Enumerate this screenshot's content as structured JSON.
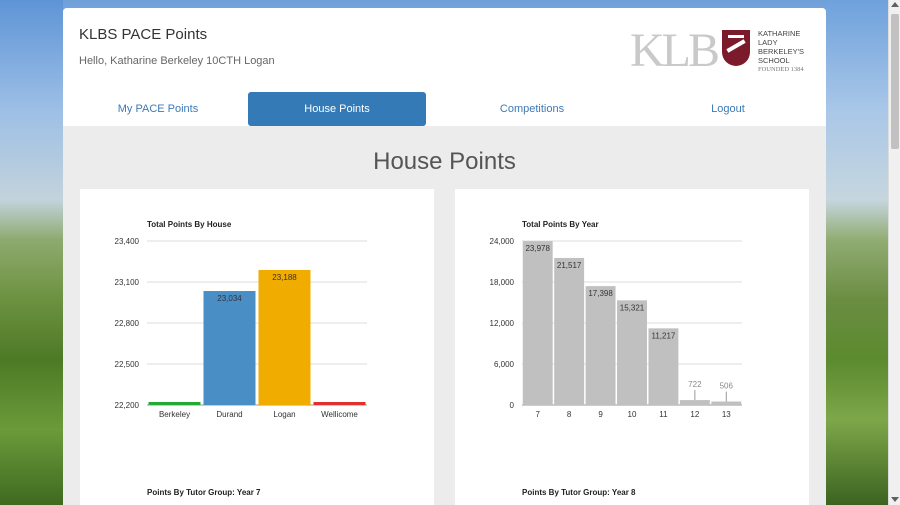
{
  "header": {
    "app_title": "KLBS PACE Points",
    "greeting": "Hello, Katharine Berkeley  10CTH  Logan",
    "logo": {
      "letters": "KLB",
      "name_lines": [
        "KATHARINE",
        "LADY",
        "BERKELEY'S",
        "SCHOOL"
      ],
      "founded": "FOUNDED 1384",
      "brand_color": "#7a1a2a"
    }
  },
  "nav": {
    "items": [
      {
        "label": "My PACE Points"
      },
      {
        "label": "House Points",
        "active": true
      },
      {
        "label": "Competitions"
      },
      {
        "label": "Logout"
      }
    ]
  },
  "main": {
    "title": "House Points",
    "subcharts": [
      "Points By Tutor Group: Year 7",
      "Points By Tutor Group: Year 8"
    ]
  },
  "chart_data": [
    {
      "type": "bar",
      "title": "Total Points By House",
      "categories": [
        "Berkeley",
        "Durand",
        "Logan",
        "Wellicome"
      ],
      "values": [
        22200,
        23034,
        23188,
        22200
      ],
      "labels": [
        "",
        "23,034",
        "23,188",
        ""
      ],
      "colors": [
        "#22aa33",
        "#4a8ec6",
        "#f0ad00",
        "#e03030"
      ],
      "ylim": [
        22200,
        23400
      ],
      "yticks": [
        22200,
        22500,
        22800,
        23100,
        23400
      ],
      "ytick_labels": [
        "22,200",
        "22,500",
        "22,800",
        "23,100",
        "23,400"
      ],
      "grid": true
    },
    {
      "type": "bar",
      "title": "Total Points By Year",
      "categories": [
        "7",
        "8",
        "9",
        "10",
        "11",
        "12",
        "13"
      ],
      "values": [
        23978,
        21517,
        17398,
        15321,
        11217,
        722,
        506
      ],
      "labels": [
        "23,978",
        "21,517",
        "17,398",
        "15,321",
        "11,217",
        "722",
        "506"
      ],
      "colors": [
        "#c0c0c0"
      ],
      "ylim": [
        0,
        24000
      ],
      "yticks": [
        0,
        6000,
        12000,
        18000,
        24000
      ],
      "ytick_labels": [
        "0",
        "6,000",
        "12,000",
        "18,000",
        "24,000"
      ],
      "grid": true
    }
  ]
}
